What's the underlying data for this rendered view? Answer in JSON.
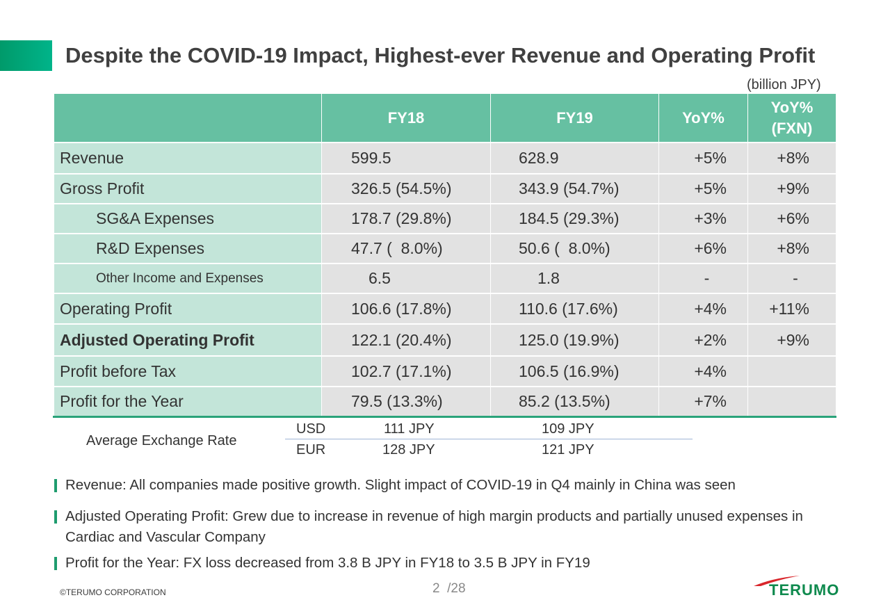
{
  "title": "Despite the COVID-19 Impact, Highest-ever Revenue and Operating Profit",
  "unit": "(billion JPY)",
  "table": {
    "headers": [
      "",
      "FY18",
      "FY19",
      "YoY%",
      "YoY%\n(FXN)"
    ],
    "rows": [
      {
        "label": "Revenue",
        "fy18": "599.5",
        "fy19": "628.9",
        "yoy": "+5%",
        "fxn": "+8%"
      },
      {
        "label": "Gross Profit",
        "fy18": "326.5 (54.5%)",
        "fy19": "343.9 (54.7%)",
        "yoy": "+5%",
        "fxn": "+9%"
      },
      {
        "label": "SG&A Expenses",
        "fy18": "178.7 (29.8%)",
        "fy19": "184.5 (29.3%)",
        "yoy": "+3%",
        "fxn": "+6%"
      },
      {
        "label": "R&D Expenses",
        "fy18": "47.7 (  8.0%)",
        "fy19": "50.6 (  8.0%)",
        "yoy": "+6%",
        "fxn": "+8%"
      },
      {
        "label": "Other Income and Expenses",
        "fy18": "6.5",
        "fy19": "1.8",
        "yoy": "-",
        "fxn": "-"
      },
      {
        "label": "Operating Profit",
        "fy18": "106.6 (17.8%)",
        "fy19": "110.6 (17.6%)",
        "yoy": "+4%",
        "fxn": "+11%"
      },
      {
        "label": "Adjusted Operating Profit",
        "fy18": "122.1 (20.4%)",
        "fy19": "125.0 (19.9%)",
        "yoy": "+2%",
        "fxn": "+9%"
      },
      {
        "label": "Profit before Tax",
        "fy18": "102.7 (17.1%)",
        "fy19": "106.5 (16.9%)",
        "yoy": "+4%",
        "fxn": ""
      },
      {
        "label": "Profit for the Year",
        "fy18": "79.5 (13.3%)",
        "fy19": "85.2 (13.5%)",
        "yoy": "+7%",
        "fxn": ""
      }
    ]
  },
  "exchange": {
    "label": "Average Exchange Rate",
    "rows": [
      {
        "cur": "USD",
        "fy18": "111 JPY",
        "fy19": "109 JPY"
      },
      {
        "cur": "EUR",
        "fy18": "128 JPY",
        "fy19": "121 JPY"
      }
    ]
  },
  "bullets": [
    "Revenue: All companies made positive growth. Slight impact of COVID-19 in Q4 mainly in China was seen",
    "Adjusted Operating Profit: Grew due to increase in revenue of high margin products and partially unused expenses in Cardiac and Vascular Company",
    "Profit for the Year: FX loss decreased from 3.8 B JPY in FY18 to 3.5 B JPY in FY19"
  ],
  "footer": {
    "copyright": "©TERUMO CORPORATION",
    "page": "2  /28",
    "logo": "TERUMO"
  },
  "colors": {
    "accent": "#00a77a",
    "header": "#66c0a2",
    "label_bg": "#c3e5d9",
    "value_bg": "#e2e2e2",
    "logo_green": "#0f8a4e",
    "logo_red": "#d9262b"
  }
}
